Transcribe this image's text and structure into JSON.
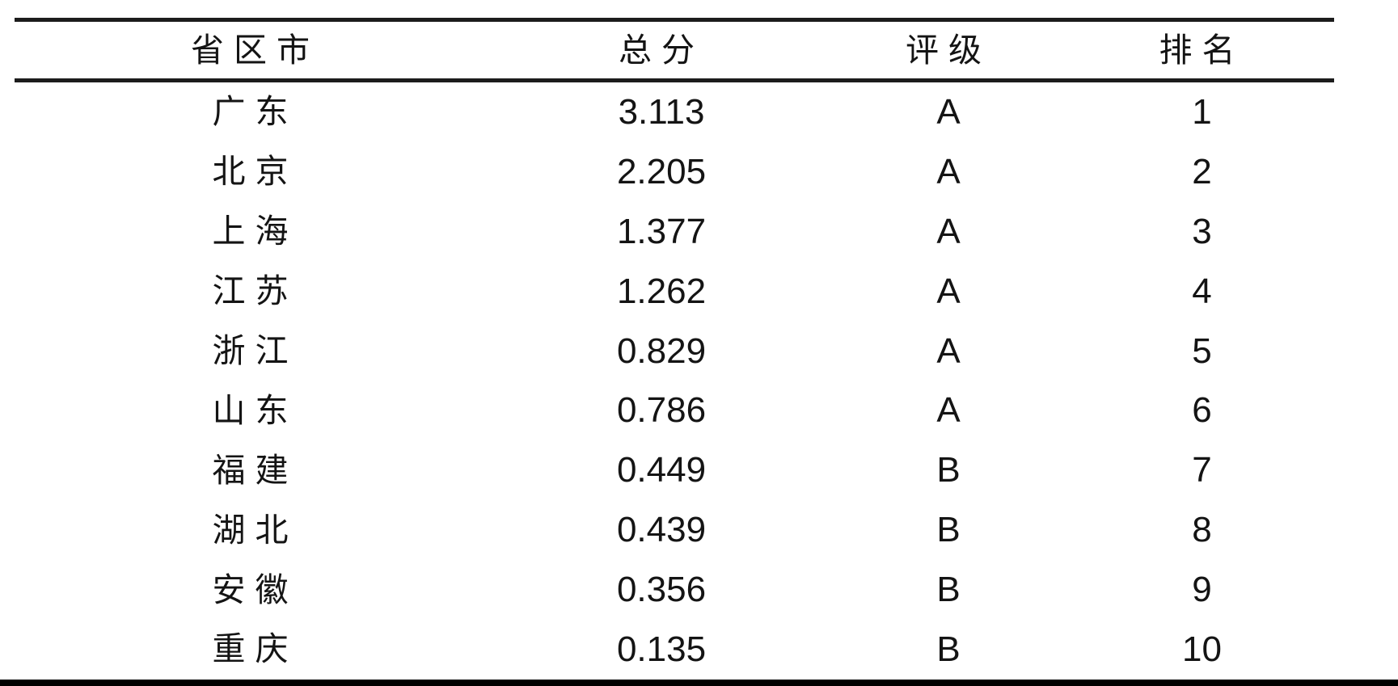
{
  "page": {
    "background": "#ffffff"
  },
  "colors": {
    "text": "#141414",
    "rule": "#1c1c1c",
    "bottom_bar": "#000000"
  },
  "table": {
    "headers": [
      "省区市",
      "总分",
      "评级",
      "排名"
    ],
    "rows": [
      {
        "province": "广东",
        "score": "3.113",
        "rating": "A",
        "rank": "1"
      },
      {
        "province": "北京",
        "score": "2.205",
        "rating": "A",
        "rank": "2"
      },
      {
        "province": "上海",
        "score": "1.377",
        "rating": "A",
        "rank": "3"
      },
      {
        "province": "江苏",
        "score": "1.262",
        "rating": "A",
        "rank": "4"
      },
      {
        "province": "浙江",
        "score": "0.829",
        "rating": "A",
        "rank": "5"
      },
      {
        "province": "山东",
        "score": "0.786",
        "rating": "A",
        "rank": "6"
      },
      {
        "province": "福建",
        "score": "0.449",
        "rating": "B",
        "rank": "7"
      },
      {
        "province": "湖北",
        "score": "0.439",
        "rating": "B",
        "rank": "8"
      },
      {
        "province": "安徽",
        "score": "0.356",
        "rating": "B",
        "rank": "9"
      },
      {
        "province": "重庆",
        "score": "0.135",
        "rating": "B",
        "rank": "10"
      }
    ]
  },
  "chart_data": {
    "type": "table",
    "columns": [
      "省区市",
      "总分",
      "评级",
      "排名"
    ],
    "rows": [
      [
        "广东",
        3.113,
        "A",
        1
      ],
      [
        "北京",
        2.205,
        "A",
        2
      ],
      [
        "上海",
        1.377,
        "A",
        3
      ],
      [
        "江苏",
        1.262,
        "A",
        4
      ],
      [
        "浙江",
        0.829,
        "A",
        5
      ],
      [
        "山东",
        0.786,
        "A",
        6
      ],
      [
        "福建",
        0.449,
        "B",
        7
      ],
      [
        "湖北",
        0.439,
        "B",
        8
      ],
      [
        "安徽",
        0.356,
        "B",
        9
      ],
      [
        "重庆",
        0.135,
        "B",
        10
      ]
    ]
  }
}
